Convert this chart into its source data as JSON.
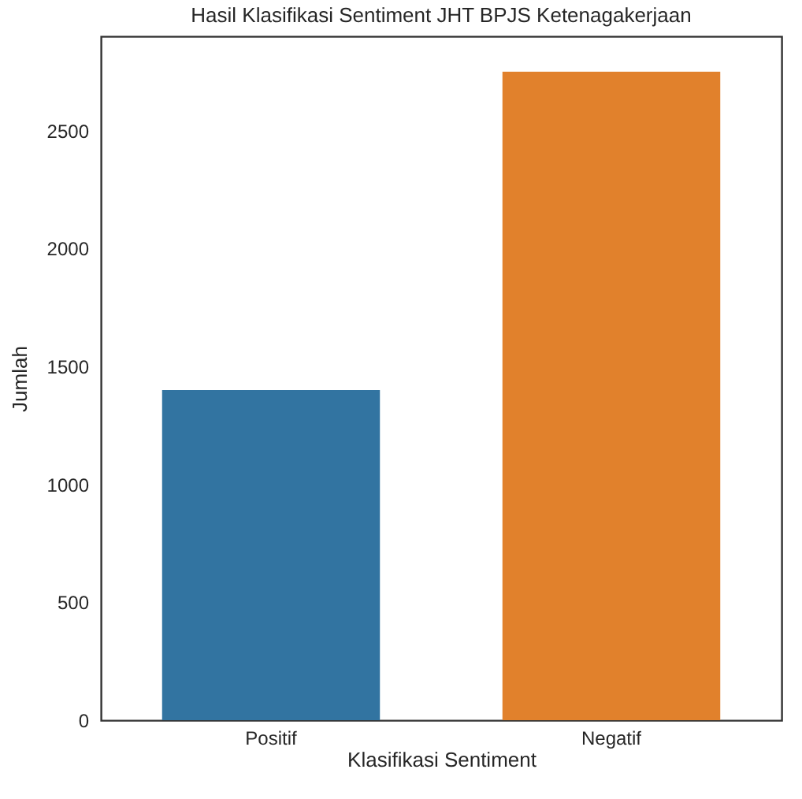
{
  "chart_data": {
    "type": "bar",
    "title": "Hasil Klasifikasi Sentiment JHT BPJS Ketenagakerjaan",
    "xlabel": "Klasifikasi Sentiment",
    "ylabel": "Jumlah",
    "categories": [
      "Positif",
      "Negatif"
    ],
    "values": [
      1400,
      2750
    ],
    "colors": [
      "#3274a1",
      "#e1812c"
    ],
    "ylim": [
      0,
      2900
    ],
    "yticks": [
      0,
      500,
      1000,
      1500,
      2000,
      2500
    ],
    "grid": false,
    "legend": false
  }
}
